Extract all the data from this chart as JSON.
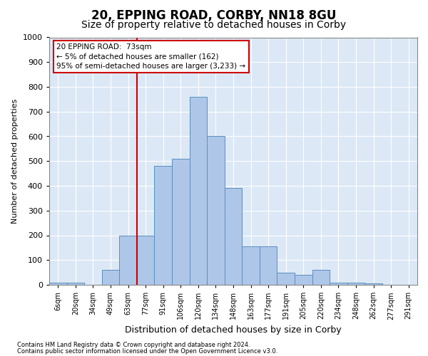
{
  "title1": "20, EPPING ROAD, CORBY, NN18 8GU",
  "title2": "Size of property relative to detached houses in Corby",
  "xlabel": "Distribution of detached houses by size in Corby",
  "ylabel": "Number of detached properties",
  "footnote1": "Contains HM Land Registry data © Crown copyright and database right 2024.",
  "footnote2": "Contains public sector information licensed under the Open Government Licence v3.0.",
  "categories": [
    "6sqm",
    "20sqm",
    "34sqm",
    "49sqm",
    "63sqm",
    "77sqm",
    "91sqm",
    "106sqm",
    "120sqm",
    "134sqm",
    "148sqm",
    "163sqm",
    "177sqm",
    "191sqm",
    "205sqm",
    "220sqm",
    "234sqm",
    "248sqm",
    "262sqm",
    "277sqm",
    "291sqm"
  ],
  "values": [
    10,
    10,
    0,
    60,
    200,
    200,
    480,
    510,
    760,
    600,
    390,
    155,
    155,
    50,
    40,
    60,
    10,
    10,
    5,
    0,
    0
  ],
  "bar_color": "#aec6e8",
  "bar_edge_color": "#5a8fc0",
  "red_line_index": 5,
  "annotation_line1": "20 EPPING ROAD:  73sqm",
  "annotation_line2": "← 5% of detached houses are smaller (162)",
  "annotation_line3": "95% of semi-detached houses are larger (3,233) →",
  "annotation_box_color": "#ffffff",
  "annotation_box_edge": "#cc0000",
  "ylim": [
    0,
    1000
  ],
  "yticks": [
    0,
    100,
    200,
    300,
    400,
    500,
    600,
    700,
    800,
    900,
    1000
  ],
  "background_color": "#dce8f5",
  "grid_color": "#ffffff",
  "title1_fontsize": 12,
  "title2_fontsize": 10,
  "bar_width": 1.0
}
